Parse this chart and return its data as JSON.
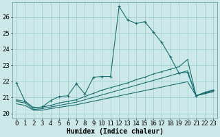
{
  "xlabel": "Humidex (Indice chaleur)",
  "background_color": "#cce8e8",
  "grid_color": "#99cccc",
  "line_color": "#1a6e6e",
  "xlim": [
    -0.5,
    23.5
  ],
  "ylim": [
    19.7,
    26.9
  ],
  "yticks": [
    20,
    21,
    22,
    23,
    24,
    25,
    26
  ],
  "xticks": [
    0,
    1,
    2,
    3,
    4,
    5,
    6,
    7,
    8,
    9,
    10,
    11,
    12,
    13,
    14,
    15,
    16,
    17,
    18,
    19,
    20,
    21,
    22,
    23
  ],
  "line1_x": [
    0,
    1,
    2,
    3,
    4,
    5,
    6,
    7,
    8,
    9,
    10,
    11,
    12,
    13,
    14,
    15,
    16,
    17,
    18,
    19,
    20,
    21,
    22,
    23
  ],
  "line1_y": [
    21.9,
    20.75,
    20.35,
    20.4,
    20.8,
    21.05,
    21.1,
    21.85,
    21.2,
    22.25,
    22.3,
    22.3,
    26.65,
    25.8,
    25.6,
    25.7,
    25.05,
    24.4,
    23.5,
    22.5,
    22.55,
    21.1,
    21.3,
    21.45
  ],
  "line2_x": [
    0,
    1,
    2,
    3,
    4,
    5,
    6,
    7,
    8,
    9,
    10,
    11,
    12,
    13,
    14,
    15,
    16,
    17,
    18,
    19,
    20,
    21,
    22,
    23
  ],
  "line2_y": [
    20.85,
    20.75,
    20.35,
    20.4,
    20.5,
    20.65,
    20.75,
    20.85,
    21.05,
    21.25,
    21.45,
    21.6,
    21.75,
    21.9,
    22.1,
    22.25,
    22.45,
    22.6,
    22.75,
    22.9,
    23.35,
    21.1,
    21.3,
    21.45
  ],
  "line3_x": [
    0,
    1,
    2,
    3,
    4,
    5,
    6,
    7,
    8,
    9,
    10,
    11,
    12,
    13,
    14,
    15,
    16,
    17,
    18,
    19,
    20,
    21,
    22,
    23
  ],
  "line3_y": [
    20.75,
    20.65,
    20.25,
    20.3,
    20.4,
    20.5,
    20.6,
    20.7,
    20.85,
    21.0,
    21.15,
    21.3,
    21.45,
    21.6,
    21.75,
    21.9,
    22.05,
    22.2,
    22.35,
    22.5,
    22.65,
    21.1,
    21.25,
    21.4
  ],
  "line4_x": [
    0,
    1,
    2,
    3,
    4,
    5,
    6,
    7,
    8,
    9,
    10,
    11,
    12,
    13,
    14,
    15,
    16,
    17,
    18,
    19,
    20,
    21,
    22,
    23
  ],
  "line4_y": [
    20.6,
    20.5,
    20.2,
    20.2,
    20.3,
    20.38,
    20.46,
    20.54,
    20.65,
    20.76,
    20.87,
    20.98,
    21.09,
    21.2,
    21.31,
    21.42,
    21.53,
    21.64,
    21.75,
    21.86,
    21.97,
    21.1,
    21.22,
    21.35
  ],
  "xlabel_fontsize": 7,
  "tick_fontsize": 6.5
}
